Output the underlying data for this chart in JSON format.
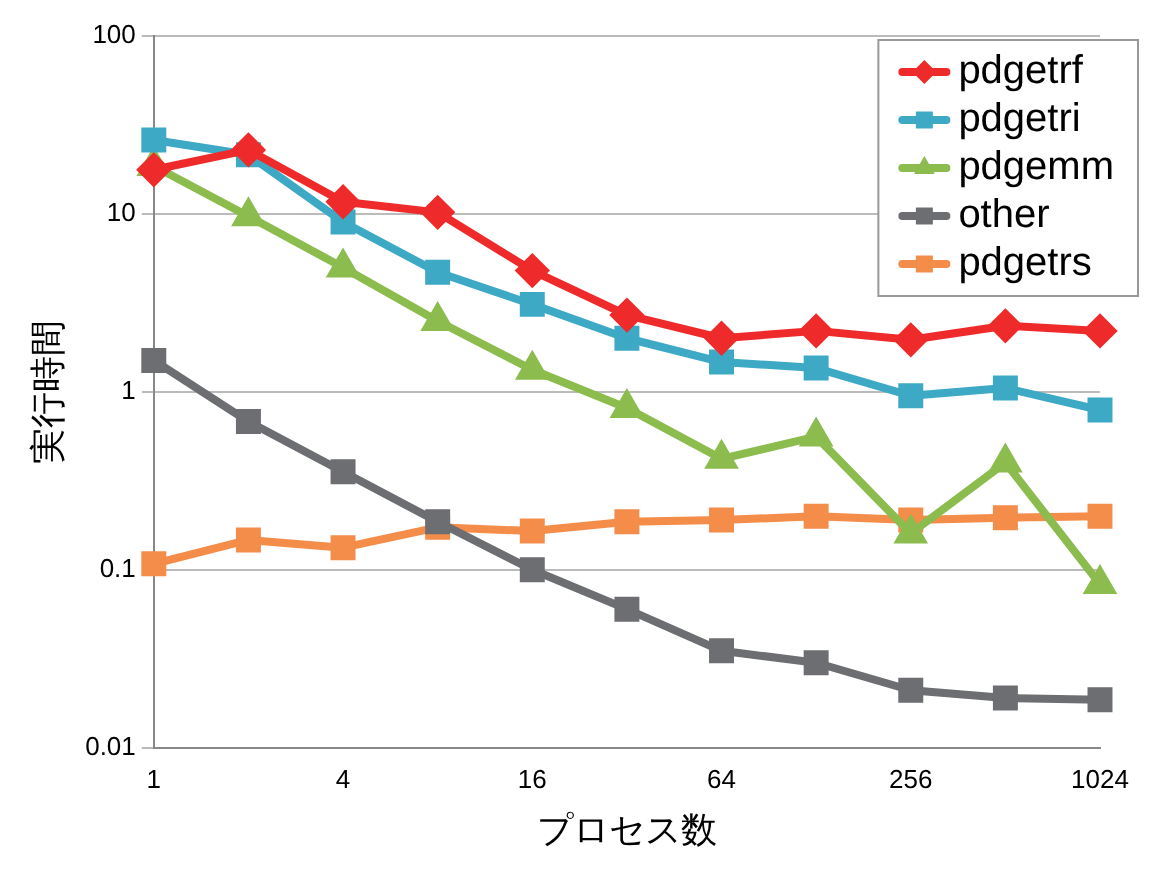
{
  "chart_data": {
    "type": "line",
    "xlabel": "プロセス数",
    "ylabel": "実行時間",
    "categories": [
      "1",
      null,
      "4",
      null,
      "16",
      null,
      "64",
      null,
      "256",
      null,
      "1024"
    ],
    "log": "y",
    "ylim": [
      0.01,
      100
    ],
    "yticks": [
      0.01,
      0.1,
      1,
      10,
      100
    ],
    "grid": "y",
    "legend": "top right",
    "line_style": "solid",
    "series": [
      {
        "name": "pdgetrf",
        "color": "#ee2a2a",
        "marker": "diamond",
        "values": [
          17.7,
          22.9,
          11.7,
          10.2,
          4.8,
          2.7,
          2.0,
          2.2,
          1.96,
          2.35,
          2.2
        ]
      },
      {
        "name": "pdgetri",
        "color": "#3da9c4",
        "marker": "square",
        "values": [
          26,
          21.5,
          9,
          4.7,
          3.1,
          2.0,
          1.47,
          1.36,
          0.95,
          1.05,
          0.79
        ]
      },
      {
        "name": "pdgemm",
        "color": "#8cbb4e",
        "marker": "triangle",
        "values": [
          18.6,
          9.7,
          5.0,
          2.5,
          1.33,
          0.81,
          0.42,
          0.56,
          0.16,
          0.4,
          0.083
        ]
      },
      {
        "name": "other",
        "color": "#6d6e71",
        "marker": "square",
        "values": [
          1.5,
          0.68,
          0.355,
          0.186,
          0.1,
          0.06,
          0.035,
          0.03,
          0.021,
          0.019,
          0.0186
        ]
      },
      {
        "name": "pdgetrs",
        "color": "#f48c4a",
        "marker": "square",
        "values": [
          0.108,
          0.147,
          0.133,
          0.173,
          0.165,
          0.186,
          0.19,
          0.2,
          0.19,
          0.196,
          0.2
        ]
      }
    ]
  }
}
